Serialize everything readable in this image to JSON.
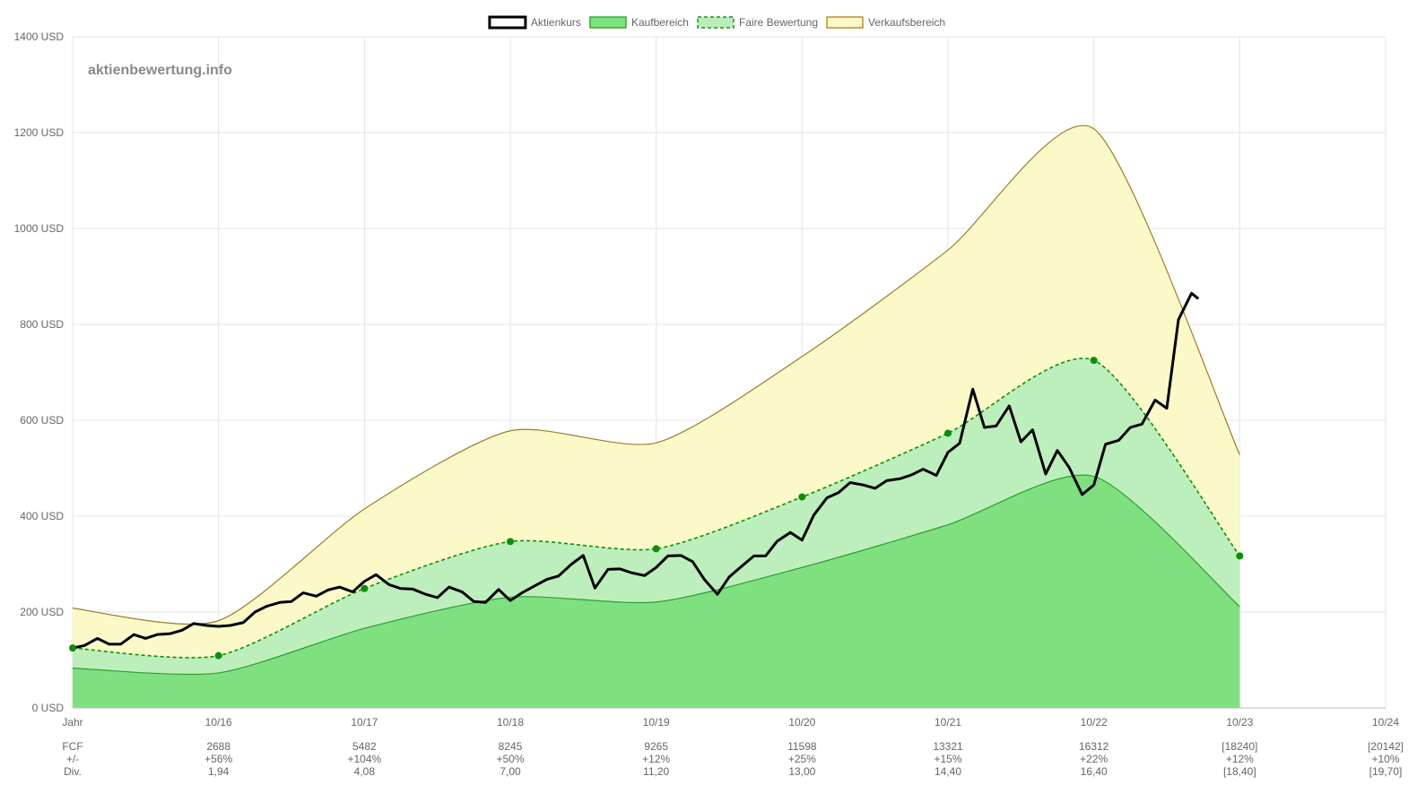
{
  "chart_data": {
    "type": "line",
    "watermark": "aktienbewertung.info",
    "x_labels": [
      "Jahr",
      "10/16",
      "10/17",
      "10/18",
      "10/19",
      "10/20",
      "10/21",
      "10/22",
      "10/23",
      "10/24"
    ],
    "y_ticks": [
      "0 USD",
      "200 USD",
      "400 USD",
      "600 USD",
      "800 USD",
      "1000 USD",
      "1200 USD",
      "1400 USD"
    ],
    "ylim": [
      0,
      1400
    ],
    "grid": true,
    "legend_position": "top",
    "legend": [
      {
        "name": "Aktienkurs",
        "style": "line",
        "stroke": "#000000",
        "fill": "#ffffff"
      },
      {
        "name": "Kaufbereich",
        "style": "area",
        "stroke": "#3aa53a",
        "fill": "#7be37b"
      },
      {
        "name": "Faire Bewertung",
        "style": "dashed-area",
        "stroke": "#0a9a0a",
        "fill": "#b9eeb9"
      },
      {
        "name": "Verkaufsbereich",
        "style": "area",
        "stroke": "#b8912c",
        "fill": "#fbf8c6"
      }
    ],
    "colors": {
      "kauf_fill": "#7fe07f",
      "kauf_line": "#2f9e2f",
      "fair_fill": "#bdefbd",
      "fair_line": "#0a8f0a",
      "verkauf_fill": "#fbf9c7",
      "verkauf_line": "#a07a2a",
      "price": "#000000",
      "grid": "#e4e4e4"
    },
    "series": [
      {
        "name": "Verkaufsbereich",
        "x": [
          0,
          1,
          2,
          3,
          4,
          5,
          6,
          7,
          8
        ],
        "values": [
          208,
          182,
          415,
          578,
          553,
          733,
          955,
          1208,
          528
        ]
      },
      {
        "name": "Faire Bewertung",
        "x": [
          0,
          1,
          2,
          3,
          4,
          5,
          6,
          7,
          8
        ],
        "values": [
          125,
          109,
          249,
          347,
          332,
          440,
          573,
          725,
          317
        ]
      },
      {
        "name": "Kaufbereich",
        "x": [
          0,
          1,
          2,
          3,
          4,
          5,
          6,
          7,
          8
        ],
        "values": [
          83,
          73,
          166,
          231,
          221,
          293,
          382,
          483,
          211
        ]
      },
      {
        "name": "Aktienkurs",
        "x": [
          0.0,
          0.08,
          0.17,
          0.25,
          0.33,
          0.42,
          0.5,
          0.58,
          0.67,
          0.75,
          0.83,
          0.92,
          1.0,
          1.08,
          1.17,
          1.25,
          1.33,
          1.42,
          1.5,
          1.58,
          1.67,
          1.75,
          1.83,
          1.92,
          2.0,
          2.08,
          2.17,
          2.25,
          2.33,
          2.42,
          2.5,
          2.58,
          2.67,
          2.75,
          2.83,
          2.92,
          3.0,
          3.08,
          3.17,
          3.25,
          3.33,
          3.42,
          3.5,
          3.58,
          3.67,
          3.75,
          3.83,
          3.92,
          4.0,
          4.08,
          4.17,
          4.25,
          4.33,
          4.42,
          4.5,
          4.58,
          4.67,
          4.75,
          4.83,
          4.92,
          5.0,
          5.08,
          5.17,
          5.25,
          5.33,
          5.42,
          5.5,
          5.58,
          5.67,
          5.75,
          5.83,
          5.92,
          6.0,
          6.08,
          6.17,
          6.25,
          6.33,
          6.42,
          6.5,
          6.58,
          6.67,
          6.75,
          6.83,
          6.92,
          7.0,
          7.08,
          7.17,
          7.25,
          7.33,
          7.42,
          7.5,
          7.58,
          7.67,
          7.71
        ],
        "values": [
          125,
          130,
          145,
          133,
          133,
          153,
          145,
          153,
          155,
          162,
          176,
          172,
          170,
          172,
          178,
          200,
          212,
          220,
          222,
          240,
          233,
          246,
          252,
          242,
          264,
          278,
          257,
          249,
          248,
          237,
          230,
          252,
          242,
          222,
          220,
          247,
          224,
          240,
          255,
          268,
          275,
          300,
          318,
          250,
          289,
          290,
          282,
          276,
          293,
          317,
          318,
          305,
          268,
          237,
          273,
          294,
          317,
          317,
          348,
          366,
          350,
          402,
          438,
          449,
          470,
          465,
          458,
          474,
          478,
          486,
          498,
          485,
          533,
          552,
          665,
          585,
          588,
          630,
          555,
          580,
          488,
          537,
          502,
          445,
          465,
          550,
          558,
          585,
          592,
          642,
          625,
          810,
          865,
          855
        ]
      }
    ],
    "table": {
      "rows": [
        {
          "label": "FCF",
          "values": [
            "2688",
            "5482",
            "8245",
            "9265",
            "11598",
            "13321",
            "16312",
            "[18240]",
            "[20142]"
          ]
        },
        {
          "label": "+/-",
          "values": [
            "+56%",
            "+104%",
            "+50%",
            "+12%",
            "+25%",
            "+15%",
            "+22%",
            "+12%",
            "+10%"
          ]
        },
        {
          "label": "Div.",
          "values": [
            "1,94",
            "4,08",
            "7,00",
            "11,20",
            "13,00",
            "14,40",
            "16,40",
            "[18,40]",
            "[19,70]"
          ]
        }
      ]
    }
  }
}
